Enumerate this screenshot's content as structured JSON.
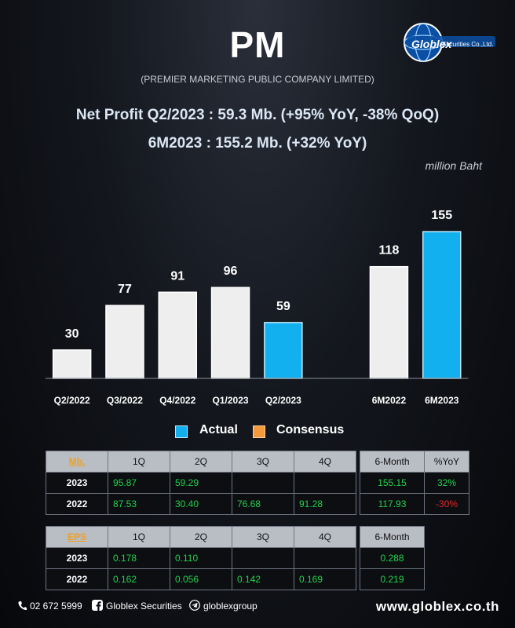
{
  "header": {
    "ticker": "PM",
    "company": "(PREMIER MARKETING PUBLIC COMPANY LIMITED)",
    "logo_text": "Globlex",
    "logo_sub": "Securities Co.,Ltd.",
    "headline1": "Net Profit  Q2/2023 : 59.3 Mb. (+95% YoY, -38% QoQ)",
    "headline2": "6M2023 : 155.2 Mb. (+32% YoY)",
    "unit": "million Baht"
  },
  "chart_data": {
    "type": "bar",
    "categories": [
      "Q2/2022",
      "Q3/2022",
      "Q4/2022",
      "Q1/2023",
      "Q2/2023",
      "",
      "6M2022",
      "6M2023"
    ],
    "values": [
      30,
      77,
      91,
      96,
      59,
      null,
      118,
      155
    ],
    "highlight": [
      "Q2/2023",
      "6M2023"
    ],
    "ylim": [
      0,
      170
    ],
    "grid": false,
    "colors": {
      "normal": "#eeeeee",
      "actual": "#12b0ee",
      "consensus": "#f59a3c"
    },
    "legend": [
      {
        "name": "Actual",
        "color": "#12b0ee"
      },
      {
        "name": "Consensus",
        "color": "#f59a3c"
      }
    ]
  },
  "table_mb": {
    "key": "Mb.",
    "headers": [
      "1Q",
      "2Q",
      "3Q",
      "4Q"
    ],
    "rows": [
      {
        "year": "2023",
        "cells": [
          "95.87",
          "59.29",
          "",
          ""
        ]
      },
      {
        "year": "2022",
        "cells": [
          "87.53",
          "30.40",
          "76.68",
          "91.28"
        ]
      }
    ]
  },
  "table_mb_6m": {
    "headers": [
      "6-Month",
      "%YoY"
    ],
    "rows": [
      {
        "cells": [
          "155.15",
          "32%"
        ]
      },
      {
        "cells": [
          "117.93",
          "-30%"
        ]
      }
    ]
  },
  "table_eps": {
    "key": "EPS",
    "headers": [
      "1Q",
      "2Q",
      "3Q",
      "4Q"
    ],
    "rows": [
      {
        "year": "2023",
        "cells": [
          "0.178",
          "0.110",
          "",
          ""
        ]
      },
      {
        "year": "2022",
        "cells": [
          "0.162",
          "0.056",
          "0.142",
          "0.169"
        ]
      }
    ]
  },
  "table_eps_6m": {
    "headers": [
      "6-Month"
    ],
    "rows": [
      {
        "cells": [
          "0.288"
        ]
      },
      {
        "cells": [
          "0.219"
        ]
      }
    ]
  },
  "footer": {
    "phone": "02 672 5999",
    "facebook": "Globlex Securities",
    "telegram": "globlexgroup",
    "website": "www.globlex.co.th"
  }
}
